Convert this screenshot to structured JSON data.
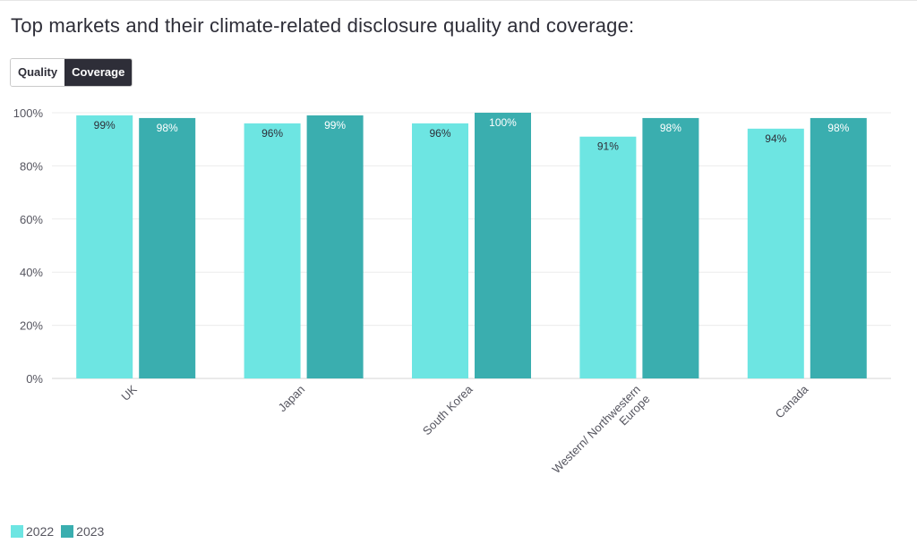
{
  "page": {
    "title": "Top markets and their climate-related disclosure quality and coverage:",
    "toggle": {
      "options": [
        "Quality",
        "Coverage"
      ],
      "selected": "Coverage"
    }
  },
  "chart_data": {
    "type": "bar",
    "categories": [
      "UK",
      "Japan",
      "South Korea",
      "Western/ Northwestern Europe",
      "Canada"
    ],
    "category_lines": [
      [
        "UK"
      ],
      [
        "Japan"
      ],
      [
        "South Korea"
      ],
      [
        "Western/ Northwestern",
        "Europe"
      ],
      [
        "Canada"
      ]
    ],
    "series": [
      {
        "name": "2022",
        "values": [
          99,
          96,
          96,
          91,
          94
        ],
        "labels": [
          "99%",
          "96%",
          "96%",
          "91%",
          "94%"
        ],
        "color": "#6de5e2",
        "label_color": "#2e2e38"
      },
      {
        "name": "2023",
        "values": [
          98,
          99,
          100,
          98,
          98
        ],
        "labels": [
          "98%",
          "99%",
          "100%",
          "98%",
          "98%"
        ],
        "color": "#3aaeaf",
        "label_color": "#ffffff"
      }
    ],
    "ylim": [
      0,
      100
    ],
    "yticks": [
      0,
      20,
      40,
      60,
      80,
      100
    ],
    "ytick_labels": [
      "0%",
      "20%",
      "40%",
      "60%",
      "80%",
      "100%"
    ],
    "xlabel": "",
    "ylabel": "",
    "grid": true,
    "legend_position": "bottom-left"
  }
}
